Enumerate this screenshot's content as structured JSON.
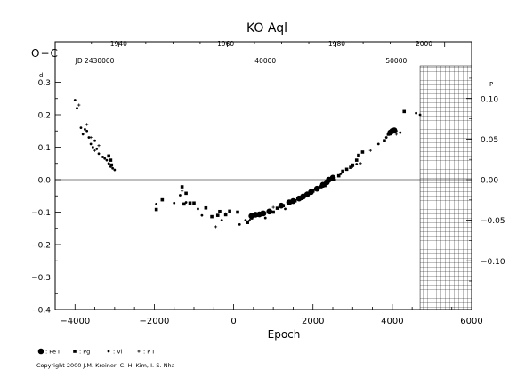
{
  "chart_data": {
    "type": "scatter",
    "title": "KO Aql",
    "xlabel": "Epoch",
    "ylabel": "O−C",
    "left_unit": "d",
    "right_unit": "P",
    "xlim": [
      -4500,
      6000
    ],
    "ylim": [
      -0.4,
      0.3
    ],
    "x_ticks": [
      -4000,
      -2000,
      0,
      2000,
      4000,
      6000
    ],
    "x_tick_labels": [
      "−4000",
      "−2000",
      "0",
      "2000",
      "4000",
      "6000"
    ],
    "y_ticks": [
      0.3,
      0.2,
      0.1,
      0.0,
      -0.1,
      -0.2,
      -0.3,
      -0.4
    ],
    "y_tick_labels": [
      "0.3",
      "0.2",
      "0.1",
      "0.0",
      "−0.1",
      "−0.2",
      "−0.3",
      "−0.4"
    ],
    "right_ticks": [
      0.1,
      0.05,
      0.0,
      -0.05,
      -0.1
    ],
    "right_tick_labels": [
      "0.10",
      "0.05",
      "0.00",
      "−0.05",
      "−0.10"
    ],
    "right_scale_factor": 0.4,
    "top_year_labels": [
      {
        "label": "1940",
        "epoch": -2900
      },
      {
        "label": "1960",
        "epoch": -200
      },
      {
        "label": "1980",
        "epoch": 2600
      },
      {
        "label": "2000",
        "epoch": 4800
      }
    ],
    "top_jd_labels": [
      {
        "label": "JD 2430000",
        "epoch": -3500
      },
      {
        "label": "40000",
        "epoch": 800
      },
      {
        "label": "50000",
        "epoch": 4100
      }
    ],
    "future_region_start": 4700,
    "zero_line": 0,
    "legend": [
      {
        "label": ": Pe I",
        "marker": "large-dot"
      },
      {
        "label": ": Pg I",
        "marker": "square"
      },
      {
        "label": ": Vi I",
        "marker": "small-dot"
      },
      {
        "label": ": P I",
        "marker": "plus"
      }
    ],
    "series": [
      {
        "name": "Pe I",
        "marker": "large-dot",
        "points": [
          [
            450,
            -0.112
          ],
          [
            550,
            -0.108
          ],
          [
            650,
            -0.107
          ],
          [
            750,
            -0.104
          ],
          [
            900,
            -0.098
          ],
          [
            1200,
            -0.08
          ],
          [
            1400,
            -0.07
          ],
          [
            1500,
            -0.066
          ],
          [
            1650,
            -0.058
          ],
          [
            1750,
            -0.052
          ],
          [
            1850,
            -0.046
          ],
          [
            1950,
            -0.038
          ],
          [
            2100,
            -0.028
          ],
          [
            2250,
            -0.016
          ],
          [
            2350,
            -0.008
          ],
          [
            2400,
            0.0
          ],
          [
            2500,
            0.006
          ],
          [
            3950,
            0.145
          ],
          [
            4000,
            0.15
          ],
          [
            4050,
            0.152
          ]
        ]
      },
      {
        "name": "Pg I",
        "marker": "square",
        "points": [
          [
            -3150,
            0.073
          ],
          [
            -3100,
            0.06
          ],
          [
            -3080,
            0.045
          ],
          [
            -1950,
            -0.092
          ],
          [
            -1800,
            -0.062
          ],
          [
            -1300,
            -0.022
          ],
          [
            -1250,
            -0.075
          ],
          [
            -1200,
            -0.042
          ],
          [
            -1100,
            -0.072
          ],
          [
            -1000,
            -0.072
          ],
          [
            -700,
            -0.087
          ],
          [
            -550,
            -0.114
          ],
          [
            -400,
            -0.11
          ],
          [
            -350,
            -0.098
          ],
          [
            -200,
            -0.108
          ],
          [
            -100,
            -0.097
          ],
          [
            100,
            -0.1
          ],
          [
            350,
            -0.132
          ],
          [
            450,
            -0.118
          ],
          [
            600,
            -0.11
          ],
          [
            1000,
            -0.1
          ],
          [
            1100,
            -0.088
          ],
          [
            1250,
            -0.08
          ],
          [
            1550,
            -0.065
          ],
          [
            1700,
            -0.058
          ],
          [
            2000,
            -0.035
          ],
          [
            2200,
            -0.022
          ],
          [
            2300,
            -0.018
          ],
          [
            2500,
            0.002
          ],
          [
            2650,
            0.012
          ],
          [
            2750,
            0.026
          ],
          [
            2850,
            0.032
          ],
          [
            2950,
            0.038
          ],
          [
            3000,
            0.045
          ],
          [
            3100,
            0.06
          ],
          [
            3150,
            0.075
          ],
          [
            3250,
            0.085
          ],
          [
            3800,
            0.12
          ],
          [
            3900,
            0.14
          ],
          [
            4300,
            0.21
          ]
        ]
      },
      {
        "name": "Vi I",
        "marker": "small-dot",
        "points": [
          [
            -4000,
            0.245
          ],
          [
            -3950,
            0.22
          ],
          [
            -3850,
            0.16
          ],
          [
            -3800,
            0.14
          ],
          [
            -3750,
            0.155
          ],
          [
            -3700,
            0.15
          ],
          [
            -3650,
            0.13
          ],
          [
            -3600,
            0.11
          ],
          [
            -3550,
            0.1
          ],
          [
            -3500,
            0.12
          ],
          [
            -3450,
            0.095
          ],
          [
            -3400,
            0.08
          ],
          [
            -3300,
            0.07
          ],
          [
            -3250,
            0.065
          ],
          [
            -3200,
            0.06
          ],
          [
            -3150,
            0.05
          ],
          [
            -3100,
            0.04
          ],
          [
            -3050,
            0.035
          ],
          [
            -3000,
            0.03
          ],
          [
            -1950,
            -0.075
          ],
          [
            -1500,
            -0.072
          ],
          [
            -1350,
            -0.048
          ],
          [
            -1200,
            -0.07
          ],
          [
            -900,
            -0.09
          ],
          [
            -800,
            -0.11
          ],
          [
            -300,
            -0.125
          ],
          [
            150,
            -0.138
          ],
          [
            300,
            -0.125
          ],
          [
            800,
            -0.118
          ],
          [
            1300,
            -0.09
          ],
          [
            1850,
            -0.04
          ],
          [
            2050,
            -0.03
          ],
          [
            2550,
            0.0
          ],
          [
            2700,
            0.018
          ],
          [
            3100,
            0.048
          ],
          [
            3650,
            0.11
          ],
          [
            3850,
            0.13
          ],
          [
            4100,
            0.15
          ],
          [
            4200,
            0.145
          ],
          [
            4600,
            0.205
          ],
          [
            4700,
            0.2
          ]
        ]
      },
      {
        "name": "P I",
        "marker": "plus",
        "points": [
          [
            -3900,
            0.23
          ],
          [
            -3700,
            0.17
          ],
          [
            -3600,
            0.13
          ],
          [
            -3500,
            0.09
          ],
          [
            -3400,
            0.105
          ],
          [
            -1300,
            -0.035
          ],
          [
            -450,
            -0.145
          ],
          [
            -200,
            -0.105
          ],
          [
            400,
            -0.125
          ],
          [
            700,
            -0.1
          ],
          [
            1000,
            -0.085
          ],
          [
            3000,
            0.04
          ],
          [
            3200,
            0.05
          ],
          [
            3450,
            0.09
          ],
          [
            4100,
            0.14
          ]
        ]
      }
    ],
    "footer": "Copyright 2000 J.M. Kreiner, C.-H. Kim, I.-S. Nha"
  }
}
